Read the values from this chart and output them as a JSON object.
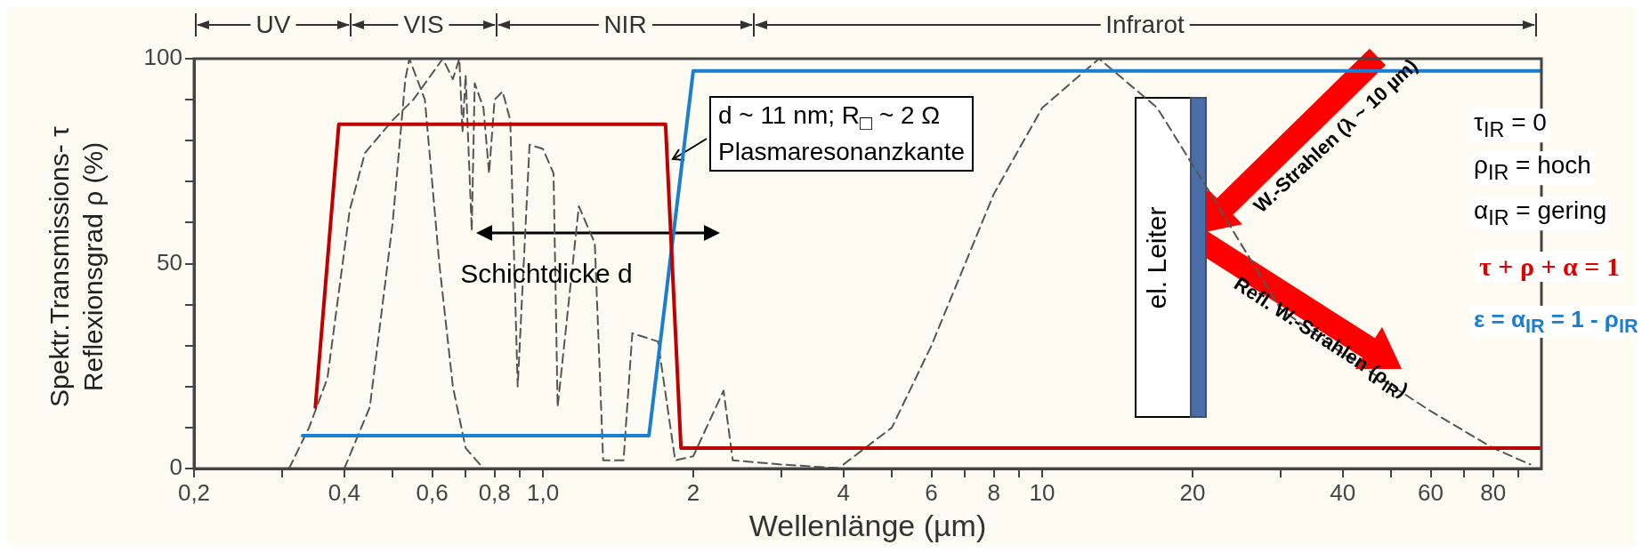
{
  "chart_data": {
    "type": "line",
    "xlabel": "Wellenlänge (µm)",
    "ylabel": "Spektr.Transmissions- τ Reflexionsgrad ρ (%)",
    "log": "x",
    "xlim": [
      0.2,
      100
    ],
    "ylim": [
      0,
      100
    ],
    "xticks": [
      {
        "value": 0.2,
        "label": "0,2"
      },
      {
        "value": 0.3,
        "label": null
      },
      {
        "value": 0.4,
        "label": "0,4"
      },
      {
        "value": 0.5,
        "label": null
      },
      {
        "value": 0.6,
        "label": "0,6"
      },
      {
        "value": 0.7,
        "label": null
      },
      {
        "value": 0.8,
        "label": "0,8"
      },
      {
        "value": 0.9,
        "label": null
      },
      {
        "value": 1,
        "label": "1,0"
      },
      {
        "value": 2,
        "label": "2"
      },
      {
        "value": 3,
        "label": null
      },
      {
        "value": 4,
        "label": "4"
      },
      {
        "value": 5,
        "label": null
      },
      {
        "value": 6,
        "label": "6"
      },
      {
        "value": 7,
        "label": null
      },
      {
        "value": 8,
        "label": "8"
      },
      {
        "value": 9,
        "label": null
      },
      {
        "value": 10,
        "label": "10"
      },
      {
        "value": 20,
        "label": "20"
      },
      {
        "value": 30,
        "label": null
      },
      {
        "value": 40,
        "label": "40"
      },
      {
        "value": 50,
        "label": null
      },
      {
        "value": 60,
        "label": "60"
      },
      {
        "value": 70,
        "label": null
      },
      {
        "value": 80,
        "label": "80"
      },
      {
        "value": 90,
        "label": null
      }
    ],
    "yticks": [
      0,
      {
        "value": 10,
        "label": null
      },
      {
        "value": 20,
        "label": null
      },
      {
        "value": 30,
        "label": null
      },
      {
        "value": 40,
        "label": null
      },
      50,
      {
        "value": 60,
        "label": null
      },
      {
        "value": 70,
        "label": null
      },
      {
        "value": 80,
        "label": null
      },
      {
        "value": 90,
        "label": null
      },
      100
    ],
    "marker": "none",
    "series": [
      {
        "type": "line",
        "color": "#555555",
        "line_style": "dashed",
        "x": [
          0.31,
          0.34,
          0.37,
          0.41,
          0.44,
          0.5,
          0.55,
          0.63,
          0.66,
          0.68,
          0.69,
          0.7,
          0.72,
          0.73,
          0.76,
          0.78,
          0.8,
          0.83,
          0.86,
          0.89,
          0.94,
          1.0,
          1.05,
          1.07,
          1.18,
          1.27,
          1.32,
          1.45,
          1.51,
          1.7,
          1.84,
          2.0,
          2.3,
          2.4,
          3.0,
          4.0
        ],
        "values": [
          0,
          10,
          22,
          63,
          77,
          85,
          90,
          100,
          95,
          100,
          82,
          96,
          58,
          94,
          88,
          72,
          90,
          92,
          85,
          20,
          79,
          78,
          72,
          15,
          64,
          55,
          2,
          2,
          33,
          31,
          2,
          3,
          19,
          2,
          1,
          0
        ]
      },
      {
        "type": "line",
        "color": "#555555",
        "line_style": "dashed",
        "x": [
          0.4,
          0.45,
          0.5,
          0.53,
          0.54,
          0.58,
          0.62,
          0.66,
          0.7,
          0.76
        ],
        "values": [
          0,
          15,
          60,
          95,
          100,
          90,
          50,
          20,
          5,
          0
        ]
      },
      {
        "type": "line",
        "color": "#555555",
        "line_style": "dashed",
        "x": [
          4,
          5,
          6,
          8,
          10,
          13,
          17,
          22,
          30,
          40,
          60,
          80,
          95
        ],
        "values": [
          1,
          10,
          30,
          67,
          88,
          100,
          88,
          66,
          39,
          28,
          14,
          5,
          1
        ]
      },
      {
        "type": "line",
        "color": "#1a7fd0",
        "line_style": "solid",
        "x": [
          0.33,
          1.63,
          2.0,
          100
        ],
        "values": [
          8,
          8,
          97,
          97
        ]
      },
      {
        "type": "line",
        "color": "#c00000",
        "line_style": "solid",
        "x": [
          0.35,
          0.39,
          1.76,
          1.89,
          100
        ],
        "values": [
          15,
          84,
          84,
          5,
          5
        ]
      }
    ],
    "annotations": [
      "d ~ 11 nm; R$_{□}$ ~ 2 Ω",
      "Plasmaresonanzkante",
      "Schichtdicke d",
      "el. Leiter",
      "W.-Strahlen (λ ~ 10 µm)",
      "Refl. W.-Strahlen (ρ$_{IR}$)",
      "τ$_{IR}$ = 0",
      "ρ$_{IR}$ = hoch",
      "α$_{IR}$ = gering",
      "τ + ρ + α = 1",
      "ε = α$_{IR}$ = 1 - ρ$_{IR}$",
      "UV",
      "VIS",
      "NIR",
      "Infrarot"
    ]
  }
}
